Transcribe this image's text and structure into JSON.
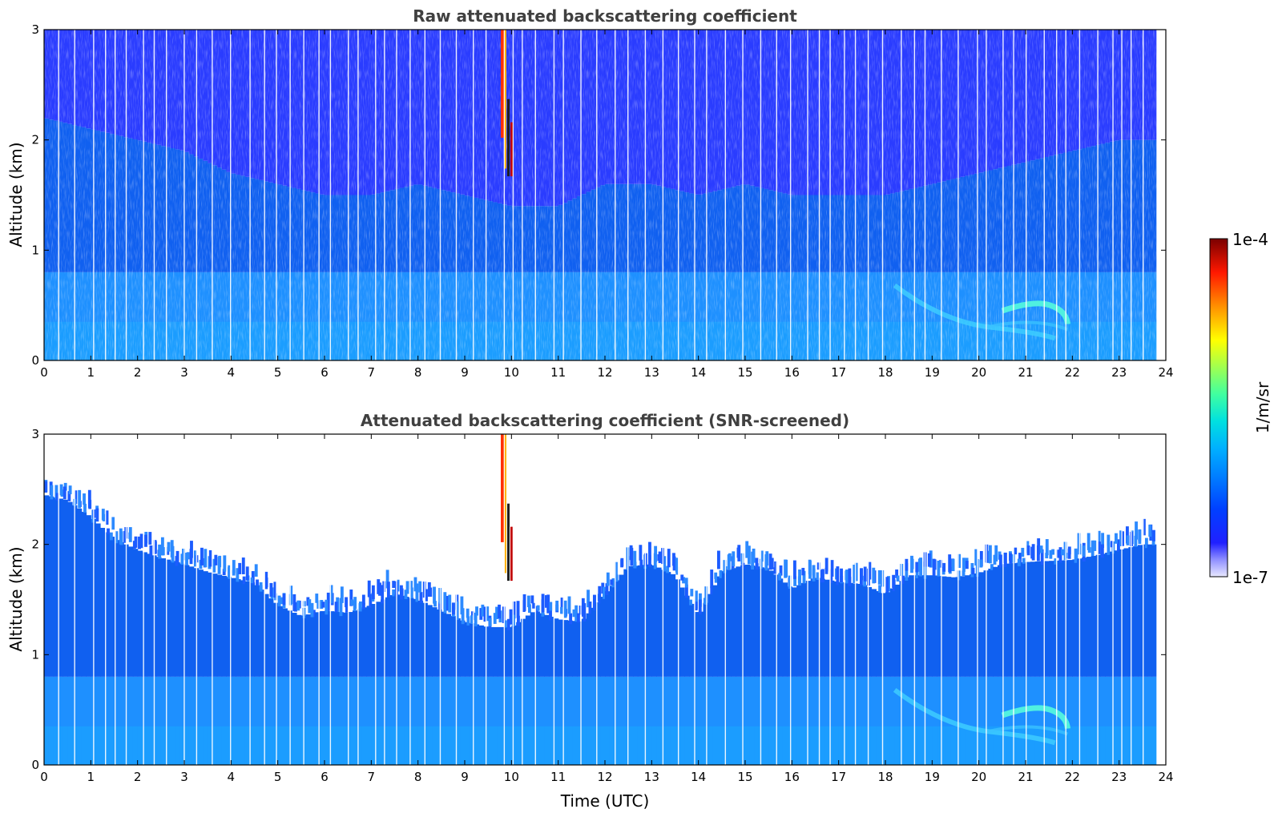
{
  "chart_data": [
    {
      "type": "heatmap",
      "title": "Raw attenuated backscattering coefficient",
      "xlabel": "",
      "ylabel": "Altitude (km)",
      "xlim": [
        0,
        24
      ],
      "ylim": [
        0,
        3
      ],
      "xticks": [
        "0",
        "1",
        "2",
        "3",
        "4",
        "5",
        "6",
        "7",
        "8",
        "9",
        "10",
        "11",
        "12",
        "13",
        "14",
        "15",
        "16",
        "17",
        "18",
        "19",
        "20",
        "21",
        "22",
        "23",
        "24"
      ],
      "yticks": [
        "0",
        "1",
        "2",
        "3"
      ],
      "data_end_hour": 23.8,
      "signal_top_km": [
        [
          0,
          2.2
        ],
        [
          1,
          2.1
        ],
        [
          2,
          2.0
        ],
        [
          3,
          1.9
        ],
        [
          4,
          1.7
        ],
        [
          5,
          1.6
        ],
        [
          6,
          1.5
        ],
        [
          7,
          1.5
        ],
        [
          8,
          1.6
        ],
        [
          9,
          1.5
        ],
        [
          10,
          1.4
        ],
        [
          11,
          1.4
        ],
        [
          12,
          1.6
        ],
        [
          13,
          1.6
        ],
        [
          14,
          1.5
        ],
        [
          15,
          1.6
        ],
        [
          16,
          1.5
        ],
        [
          17,
          1.5
        ],
        [
          18,
          1.5
        ],
        [
          19,
          1.6
        ],
        [
          20,
          1.7
        ],
        [
          21,
          1.8
        ],
        [
          22,
          1.9
        ],
        [
          23,
          2.0
        ],
        [
          23.8,
          2.0
        ]
      ],
      "features": [
        {
          "kind": "cloud_streak",
          "x_hours": [
            9.6,
            10.0
          ],
          "y_km": [
            1.6,
            3.0
          ]
        },
        {
          "kind": "aerosol_layer",
          "x_hours": [
            18.2,
            21.9
          ],
          "y_km": [
            0.3,
            0.6
          ]
        }
      ]
    },
    {
      "type": "heatmap",
      "title": "Attenuated backscattering coefficient (SNR-screened)",
      "xlabel": "Time (UTC)",
      "ylabel": "Altitude (km)",
      "xlim": [
        0,
        24
      ],
      "ylim": [
        0,
        3
      ],
      "xticks": [
        "0",
        "1",
        "2",
        "3",
        "4",
        "5",
        "6",
        "7",
        "8",
        "9",
        "10",
        "11",
        "12",
        "13",
        "14",
        "15",
        "16",
        "17",
        "18",
        "19",
        "20",
        "21",
        "22",
        "23",
        "24"
      ],
      "yticks": [
        "0",
        "1",
        "2",
        "3"
      ],
      "data_end_hour": 23.8,
      "screened_top_km": [
        [
          0,
          2.45
        ],
        [
          0.5,
          2.4
        ],
        [
          1,
          2.25
        ],
        [
          1.5,
          2.05
        ],
        [
          2,
          1.95
        ],
        [
          2.5,
          1.88
        ],
        [
          3,
          1.82
        ],
        [
          3.5,
          1.75
        ],
        [
          4,
          1.7
        ],
        [
          4.5,
          1.65
        ],
        [
          5,
          1.45
        ],
        [
          5.5,
          1.35
        ],
        [
          6,
          1.4
        ],
        [
          6.5,
          1.38
        ],
        [
          7,
          1.45
        ],
        [
          7.5,
          1.55
        ],
        [
          8,
          1.5
        ],
        [
          8.5,
          1.4
        ],
        [
          9,
          1.3
        ],
        [
          9.5,
          1.25
        ],
        [
          10,
          1.25
        ],
        [
          10.5,
          1.4
        ],
        [
          11,
          1.32
        ],
        [
          11.5,
          1.3
        ],
        [
          12,
          1.55
        ],
        [
          12.5,
          1.8
        ],
        [
          13,
          1.82
        ],
        [
          13.5,
          1.72
        ],
        [
          14,
          1.35
        ],
        [
          14.5,
          1.75
        ],
        [
          15,
          1.82
        ],
        [
          15.5,
          1.78
        ],
        [
          16,
          1.6
        ],
        [
          16.5,
          1.7
        ],
        [
          17,
          1.66
        ],
        [
          17.5,
          1.64
        ],
        [
          18,
          1.55
        ],
        [
          18.5,
          1.72
        ],
        [
          19,
          1.72
        ],
        [
          19.5,
          1.7
        ],
        [
          20,
          1.74
        ],
        [
          20.5,
          1.82
        ],
        [
          21,
          1.84
        ],
        [
          21.5,
          1.85
        ],
        [
          22,
          1.86
        ],
        [
          22.5,
          1.9
        ],
        [
          23,
          1.95
        ],
        [
          23.5,
          2.0
        ],
        [
          23.8,
          2.0
        ]
      ],
      "features": [
        {
          "kind": "cloud_streak",
          "x_hours": [
            9.6,
            10.0
          ],
          "y_km": [
            1.6,
            3.0
          ]
        },
        {
          "kind": "aerosol_layer",
          "x_hours": [
            18.2,
            21.9
          ],
          "y_km": [
            0.3,
            0.6
          ]
        }
      ]
    }
  ],
  "colorbar": {
    "max_label": "1e-4",
    "min_label": "1e-7",
    "unit": "1/m/sr",
    "scale": "log",
    "range": [
      1e-07,
      0.0001
    ],
    "colormap": "jet"
  }
}
